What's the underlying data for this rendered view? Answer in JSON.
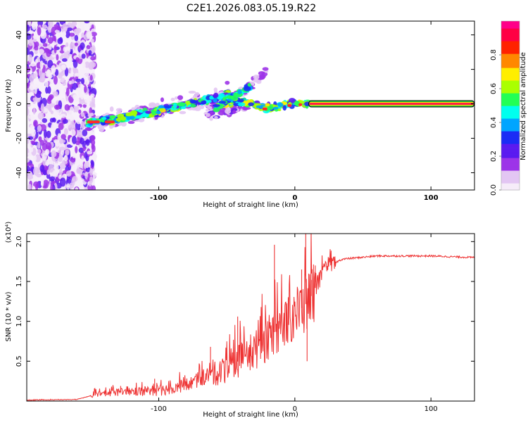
{
  "title": "C2E1.2026.083.05.19.R22",
  "chart_data": [
    {
      "type": "heatmap",
      "xlabel": "Height of straight line (km)",
      "ylabel": "Frequency (Hz)",
      "xlim": [
        -197,
        132
      ],
      "ylim": [
        -50,
        48
      ],
      "xticks": [
        -100,
        0,
        100
      ],
      "xtick_labels": [
        "-100",
        "0",
        "100"
      ],
      "yticks": [
        -40,
        -20,
        0,
        20,
        40
      ],
      "ytick_labels": [
        "-40",
        "-20",
        "0",
        "20",
        "40"
      ],
      "colorbar": {
        "label": "Normalized spectral amplitude",
        "range": [
          0,
          1
        ],
        "ticks": [
          0.0,
          0.2,
          0.4,
          0.6,
          0.8
        ],
        "tick_labels": [
          "0.0",
          "0.2",
          "0.4",
          "0.6",
          "0.8"
        ],
        "colormap": [
          "#f6ecf9",
          "#e3c6f3",
          "#9d34e8",
          "#5b1bf0",
          "#1b2cf5",
          "#00a5ff",
          "#00ffee",
          "#22ff55",
          "#aaff00",
          "#ffee00",
          "#ff8800",
          "#ff2200",
          "#ff0044",
          "#ff0088"
        ]
      },
      "features": {
        "noise_region_x": [
          -197,
          -147
        ],
        "main_trend": [
          [
            -152,
            -11
          ],
          [
            -130,
            -8.5
          ],
          [
            -105,
            -5
          ],
          [
            -80,
            -0.5
          ],
          [
            -60,
            3
          ],
          [
            -47,
            6
          ]
        ],
        "upper_branch": [
          [
            -58,
            -2
          ],
          [
            -45,
            4
          ],
          [
            -33,
            10
          ],
          [
            -28,
            14
          ],
          [
            -20,
            20
          ]
        ],
        "lower_branch": [
          [
            -65,
            -7
          ],
          [
            -48,
            -4
          ],
          [
            -35,
            -2
          ]
        ],
        "cluster_trend": [
          [
            -55,
            0
          ],
          [
            -40,
            1.5
          ],
          [
            -28,
            -1
          ],
          [
            -18,
            -2.5
          ],
          [
            -8,
            -0.5
          ],
          [
            0,
            0.5
          ],
          [
            10,
            0
          ]
        ],
        "stable_line": [
          [
            10,
            0
          ],
          [
            132,
            0
          ]
        ]
      }
    },
    {
      "type": "line",
      "xlabel": "Height of straight line (km)",
      "ylabel": "SNR (10 * v/v)",
      "ymultiplier": "(x10⁴)",
      "xlim": [
        -197,
        132
      ],
      "ylim": [
        0,
        2.1
      ],
      "xticks": [
        -100,
        0,
        100
      ],
      "xtick_labels": [
        "-100",
        "0",
        "100"
      ],
      "yticks": [
        0.5,
        1.0,
        1.5,
        2.0
      ],
      "ytick_labels": [
        "0.5",
        "1.0",
        "1.5",
        "2.0"
      ],
      "line_color": "#ee3333",
      "baseline": [
        [
          -197,
          0.01
        ],
        [
          -160,
          0.02
        ],
        [
          -145,
          0.09
        ],
        [
          -120,
          0.12
        ],
        [
          -100,
          0.13
        ],
        [
          -80,
          0.2
        ],
        [
          -65,
          0.3
        ],
        [
          -50,
          0.4
        ],
        [
          -40,
          0.52
        ],
        [
          -30,
          0.62
        ],
        [
          -20,
          0.78
        ],
        [
          -10,
          0.95
        ],
        [
          0,
          1.08
        ],
        [
          10,
          1.25
        ],
        [
          18,
          1.52
        ],
        [
          25,
          1.7
        ],
        [
          35,
          1.78
        ],
        [
          60,
          1.82
        ],
        [
          100,
          1.82
        ],
        [
          132,
          1.8
        ]
      ],
      "spikes": [
        [
          -148,
          0.12
        ],
        [
          -128,
          0.19
        ],
        [
          -103,
          0.28
        ],
        [
          -62,
          0.68
        ],
        [
          -42,
          1.06
        ],
        [
          -15,
          1.96
        ],
        [
          5,
          1.65
        ],
        [
          8,
          2.12
        ],
        [
          9,
          0.5
        ],
        [
          12,
          1.52
        ],
        [
          15,
          1.7
        ]
      ]
    }
  ]
}
